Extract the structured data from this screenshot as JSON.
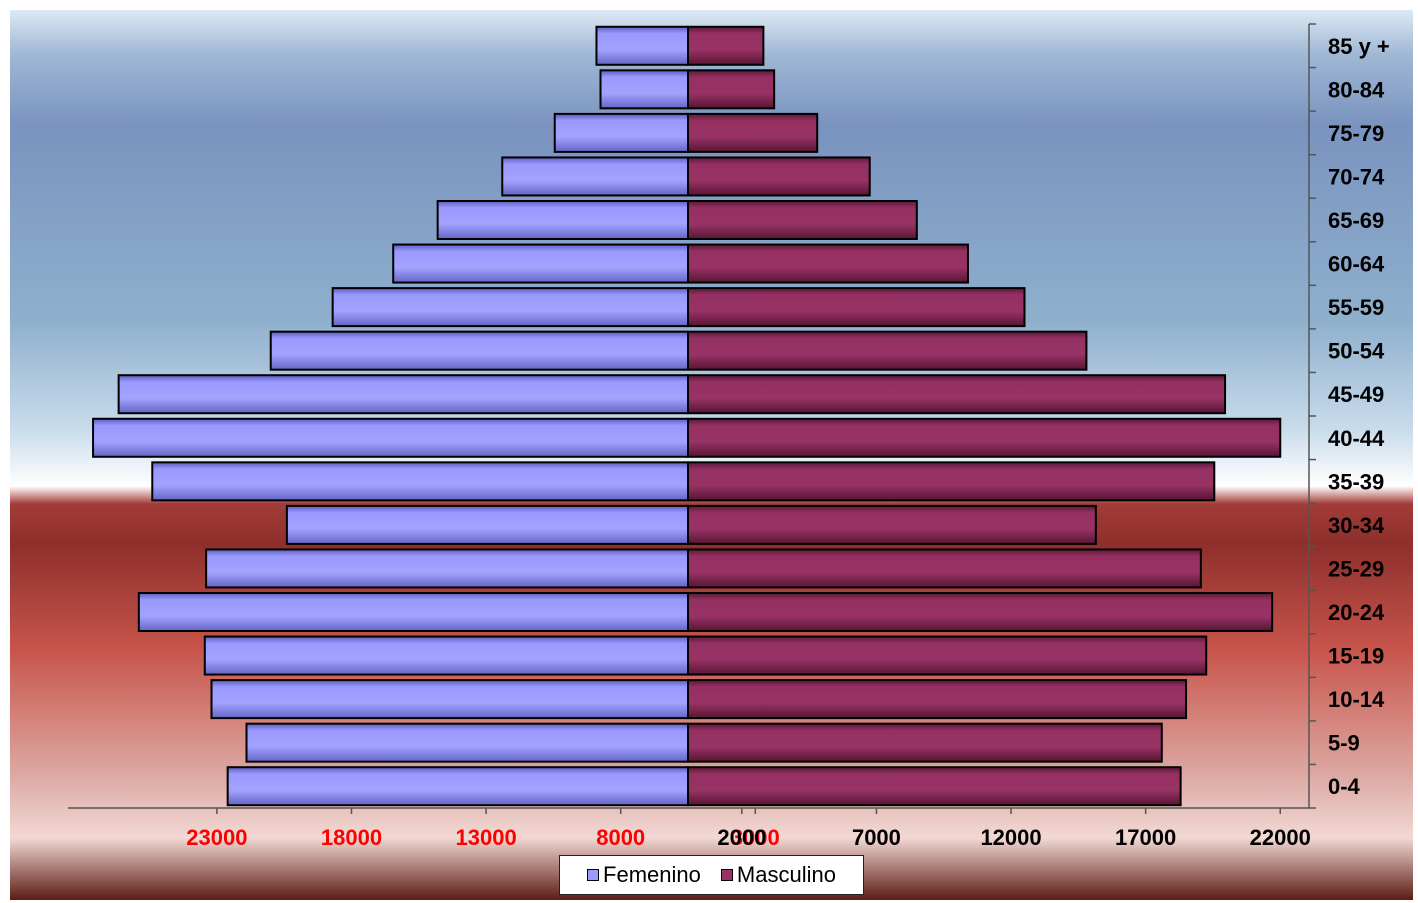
{
  "chart_data": {
    "type": "bar",
    "orientation": "horizontal",
    "categories": [
      "0-4",
      "5-9",
      "10-14",
      "15-19",
      "20-24",
      "25-29",
      "30-34",
      "35-39",
      "40-44",
      "45-49",
      "50-54",
      "55-59",
      "60-64",
      "65-69",
      "70-74",
      "75-79",
      "80-84",
      "85 y +"
    ],
    "series": [
      {
        "name": "Femenino",
        "color": "#9999ff",
        "values": [
          17100,
          16400,
          17700,
          17950,
          20400,
          17900,
          14900,
          19900,
          22100,
          21150,
          15500,
          13200,
          10950,
          9300,
          6900,
          4950,
          3250,
          3400
        ]
      },
      {
        "name": "Masculino",
        "color": "#993366",
        "values": [
          18300,
          17600,
          18500,
          19250,
          21700,
          19050,
          15150,
          19550,
          22000,
          19950,
          14800,
          12500,
          10400,
          8500,
          6750,
          4800,
          3200,
          2800
        ]
      }
    ],
    "xticks": {
      "left": [
        "23000",
        "18000",
        "13000",
        "8000",
        "3000"
      ],
      "right": [
        "2000",
        "7000",
        "12000",
        "17000",
        "22000"
      ],
      "left_color": "#ff0000",
      "right_color": "#000000"
    },
    "legend": {
      "position": "bottom",
      "items": [
        "Femenino",
        "Masculino"
      ]
    },
    "grid": false
  }
}
